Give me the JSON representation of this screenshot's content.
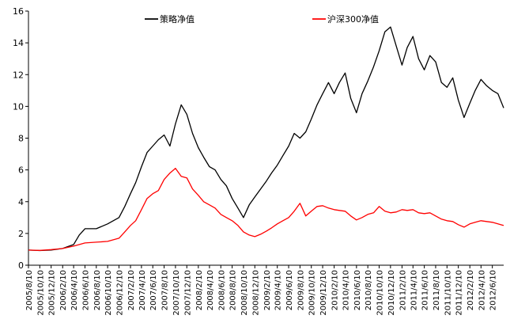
{
  "chart_data": {
    "type": "line",
    "ylim": [
      0,
      16
    ],
    "yticks": [
      0,
      2,
      4,
      6,
      8,
      10,
      12,
      14,
      16
    ],
    "x_tick_labels": [
      "2005/8/10",
      "2005/10/10",
      "2005/12/10",
      "2006/2/10",
      "2006/4/10",
      "2006/6/10",
      "2006/8/10",
      "2006/10/10",
      "2006/12/10",
      "2007/2/10",
      "2007/4/10",
      "2007/6/10",
      "2007/8/10",
      "2007/10/10",
      "2007/12/10",
      "2008/2/10",
      "2008/4/10",
      "2008/6/10",
      "2008/8/10",
      "2008/10/10",
      "2008/12/10",
      "2009/2/10",
      "2009/4/10",
      "2009/6/10",
      "2009/8/10",
      "2009/10/10",
      "2009/12/10",
      "2010/2/10",
      "2010/4/10",
      "2010/6/10",
      "2010/8/10",
      "2010/10/10",
      "2010/12/10",
      "2011/2/10",
      "2011/4/10",
      "2011/6/10",
      "2011/8/10",
      "2011/10/10",
      "2011/12/10",
      "2012/2/10",
      "2012/4/10",
      "2012/6/10"
    ],
    "legend": {
      "placement": "top"
    },
    "grid": false,
    "series": [
      {
        "name": "策略净值",
        "color": "#000000",
        "x": [
          "2005/8/10",
          "2005/10/10",
          "2005/12/10",
          "2006/2/10",
          "2006/4/10",
          "2006/5/10",
          "2006/6/10",
          "2006/8/10",
          "2006/10/10",
          "2006/12/10",
          "2007/1/10",
          "2007/2/10",
          "2007/3/10",
          "2007/4/10",
          "2007/5/10",
          "2007/6/10",
          "2007/7/10",
          "2007/8/10",
          "2007/9/10",
          "2007/10/10",
          "2007/11/10",
          "2007/12/10",
          "2008/1/10",
          "2008/2/10",
          "2008/3/10",
          "2008/4/10",
          "2008/5/10",
          "2008/6/10",
          "2008/7/10",
          "2008/8/10",
          "2008/9/10",
          "2008/10/10",
          "2008/11/10",
          "2008/12/10",
          "2009/1/10",
          "2009/2/10",
          "2009/3/10",
          "2009/4/10",
          "2009/5/10",
          "2009/6/10",
          "2009/7/10",
          "2009/8/10",
          "2009/9/10",
          "2009/10/10",
          "2009/11/10",
          "2009/12/10",
          "2010/1/10",
          "2010/2/10",
          "2010/3/10",
          "2010/4/10",
          "2010/5/10",
          "2010/6/10",
          "2010/7/10",
          "2010/8/10",
          "2010/9/10",
          "2010/10/10",
          "2010/11/10",
          "2010/12/10",
          "2011/1/10",
          "2011/2/10",
          "2011/3/10",
          "2011/4/10",
          "2011/5/10",
          "2011/6/10",
          "2011/7/10",
          "2011/8/10",
          "2011/9/10",
          "2011/10/10",
          "2011/11/10",
          "2011/12/10",
          "2012/1/10",
          "2012/2/10",
          "2012/3/10",
          "2012/4/10",
          "2012/5/10",
          "2012/6/10",
          "2012/7/10",
          "2012/8/10"
        ],
        "values": [
          0.95,
          0.92,
          0.95,
          1.05,
          1.3,
          1.9,
          2.3,
          2.3,
          2.6,
          3.0,
          3.7,
          4.5,
          5.2,
          6.2,
          7.1,
          7.5,
          7.9,
          8.2,
          7.5,
          8.9,
          10.1,
          9.5,
          8.3,
          7.4,
          6.8,
          6.2,
          6.0,
          5.4,
          5.0,
          4.2,
          3.6,
          3.0,
          3.8,
          4.3,
          4.8,
          5.3,
          5.8,
          6.3,
          6.9,
          7.5,
          8.3,
          8.0,
          8.4,
          9.2,
          10.1,
          10.8,
          11.5,
          10.8,
          11.5,
          12.1,
          10.5,
          9.6,
          10.8,
          11.6,
          12.5,
          13.5,
          14.7,
          15.0,
          13.8,
          12.6,
          13.7,
          14.4,
          13.0,
          12.3,
          13.2,
          12.8,
          11.5,
          11.2,
          11.8,
          10.4,
          9.3,
          10.2,
          11.0,
          11.7,
          11.3,
          11.0,
          10.8,
          9.9
        ]
      },
      {
        "name": "沪深300净值",
        "color": "#ff0000",
        "x": [
          "2005/8/10",
          "2005/10/10",
          "2005/12/10",
          "2006/2/10",
          "2006/4/10",
          "2006/6/10",
          "2006/8/10",
          "2006/10/10",
          "2006/12/10",
          "2007/1/10",
          "2007/2/10",
          "2007/3/10",
          "2007/4/10",
          "2007/5/10",
          "2007/6/10",
          "2007/7/10",
          "2007/8/10",
          "2007/9/10",
          "2007/10/10",
          "2007/11/10",
          "2007/12/10",
          "2008/1/10",
          "2008/2/10",
          "2008/3/10",
          "2008/4/10",
          "2008/5/10",
          "2008/6/10",
          "2008/7/10",
          "2008/8/10",
          "2008/9/10",
          "2008/10/10",
          "2008/11/10",
          "2008/12/10",
          "2009/1/10",
          "2009/2/10",
          "2009/3/10",
          "2009/4/10",
          "2009/5/10",
          "2009/6/10",
          "2009/7/10",
          "2009/8/10",
          "2009/9/10",
          "2009/10/10",
          "2009/11/10",
          "2009/12/10",
          "2010/1/10",
          "2010/2/10",
          "2010/3/10",
          "2010/4/10",
          "2010/5/10",
          "2010/6/10",
          "2010/7/10",
          "2010/8/10",
          "2010/9/10",
          "2010/10/10",
          "2010/11/10",
          "2010/12/10",
          "2011/1/10",
          "2011/2/10",
          "2011/3/10",
          "2011/4/10",
          "2011/5/10",
          "2011/6/10",
          "2011/7/10",
          "2011/8/10",
          "2011/9/10",
          "2011/10/10",
          "2011/11/10",
          "2011/12/10",
          "2012/1/10",
          "2012/2/10",
          "2012/3/10",
          "2012/4/10",
          "2012/5/10",
          "2012/6/10",
          "2012/7/10",
          "2012/8/10"
        ],
        "values": [
          0.95,
          0.93,
          0.98,
          1.05,
          1.2,
          1.4,
          1.45,
          1.5,
          1.7,
          2.1,
          2.5,
          2.8,
          3.5,
          4.2,
          4.5,
          4.7,
          5.4,
          5.8,
          6.1,
          5.6,
          5.5,
          4.8,
          4.4,
          4.0,
          3.8,
          3.6,
          3.2,
          3.0,
          2.8,
          2.5,
          2.1,
          1.9,
          1.8,
          1.95,
          2.15,
          2.35,
          2.6,
          2.8,
          3.0,
          3.4,
          3.9,
          3.1,
          3.4,
          3.7,
          3.75,
          3.6,
          3.5,
          3.45,
          3.4,
          3.1,
          2.85,
          3.0,
          3.2,
          3.3,
          3.7,
          3.4,
          3.3,
          3.35,
          3.5,
          3.45,
          3.5,
          3.3,
          3.25,
          3.3,
          3.1,
          2.9,
          2.8,
          2.75,
          2.55,
          2.4,
          2.6,
          2.7,
          2.8,
          2.75,
          2.7,
          2.6,
          2.5
        ]
      }
    ]
  }
}
